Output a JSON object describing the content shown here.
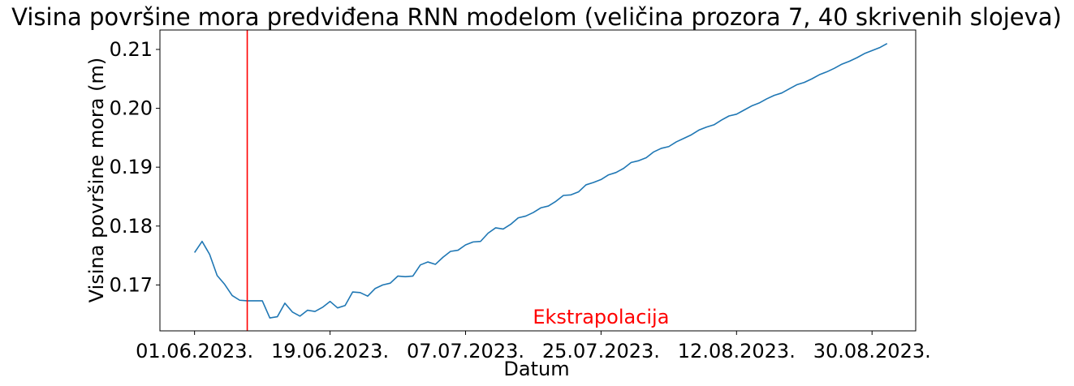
{
  "chart_data": {
    "type": "line",
    "title": "Visina površine mora predviđena RNN modelom (veličina prozora 7, 40 skrivenih slojeva)",
    "xlabel": "Datum",
    "ylabel": "Visina površine mora (m)",
    "x_start": "01.06.2023.",
    "x_step_days": 1,
    "x_ticks": [
      {
        "label": "01.06.2023.",
        "day": 0
      },
      {
        "label": "19.06.2023.",
        "day": 18
      },
      {
        "label": "07.07.2023.",
        "day": 36
      },
      {
        "label": "25.07.2023.",
        "day": 54
      },
      {
        "label": "12.08.2023.",
        "day": 72
      },
      {
        "label": "30.08.2023.",
        "day": 90
      }
    ],
    "y_ticks": [
      0.17,
      0.18,
      0.19,
      0.2,
      0.21
    ],
    "y_tick_labels": [
      "0.17",
      "0.18",
      "0.19",
      "0.20",
      "0.21"
    ],
    "xlim_days": [
      -4.6,
      95.8
    ],
    "ylim": [
      0.1622,
      0.2133
    ],
    "grid": false,
    "vline": {
      "day": 7,
      "color": "#ff0000"
    },
    "annotation": {
      "text": "Ekstrapolacija",
      "day": 54,
      "y": 0.1647,
      "color": "#ff0000"
    },
    "series": [
      {
        "color": "#1f77b4",
        "values": [
          0.1755,
          0.1774,
          0.1752,
          0.1716,
          0.1701,
          0.1682,
          0.1674,
          0.1673,
          0.1673,
          0.1673,
          0.1644,
          0.1646,
          0.1669,
          0.1654,
          0.1647,
          0.1657,
          0.1655,
          0.1662,
          0.1672,
          0.1661,
          0.1665,
          0.1688,
          0.1687,
          0.1681,
          0.1694,
          0.17,
          0.1703,
          0.1715,
          0.1714,
          0.1715,
          0.1734,
          0.1739,
          0.1735,
          0.1747,
          0.1757,
          0.1759,
          0.1768,
          0.1773,
          0.1774,
          0.1788,
          0.1797,
          0.1795,
          0.1803,
          0.1814,
          0.1817,
          0.1823,
          0.1831,
          0.1834,
          0.1842,
          0.1852,
          0.1853,
          0.1858,
          0.187,
          0.1874,
          0.1879,
          0.1887,
          0.1891,
          0.1898,
          0.1908,
          0.1911,
          0.1916,
          0.1926,
          0.1932,
          0.1935,
          0.1943,
          0.1949,
          0.1955,
          0.1963,
          0.1968,
          0.1972,
          0.198,
          0.1987,
          0.199,
          0.1997,
          0.2004,
          0.2009,
          0.2016,
          0.2022,
          0.2026,
          0.2033,
          0.204,
          0.2044,
          0.205,
          0.2057,
          0.2062,
          0.2068,
          0.2075,
          0.208,
          0.2086,
          0.2093,
          0.2098,
          0.2103,
          0.211
        ]
      }
    ]
  }
}
